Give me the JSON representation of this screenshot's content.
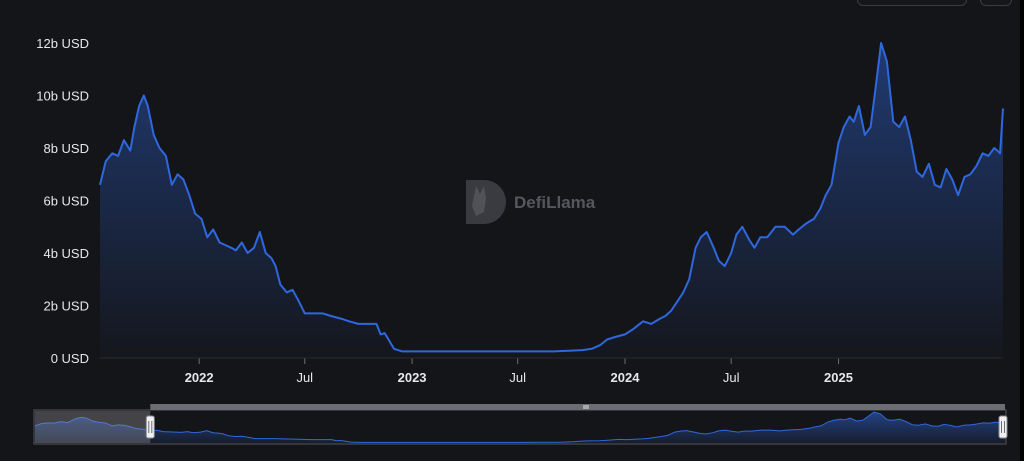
{
  "brand": {
    "watermark_text": "DefiLlama",
    "watermark_icon": "llama-logo-icon",
    "line_color": "#2f68dd",
    "background": "#141519"
  },
  "chart_data": {
    "type": "area",
    "title": "",
    "xlabel": "",
    "ylabel": "",
    "unit": "USD",
    "ylim": [
      0,
      12
    ],
    "xlim": [
      "2021-07-15",
      "2025-10-10"
    ],
    "yticks": [
      {
        "value": 0,
        "label": "0 USD"
      },
      {
        "value": 2,
        "label": "2b USD"
      },
      {
        "value": 4,
        "label": "4b USD"
      },
      {
        "value": 6,
        "label": "6b USD"
      },
      {
        "value": 8,
        "label": "8b USD"
      },
      {
        "value": 10,
        "label": "10b USD"
      },
      {
        "value": 12,
        "label": "12b USD"
      }
    ],
    "xticks": [
      {
        "date": "2022-01-01",
        "label": "2022",
        "bold": true
      },
      {
        "date": "2022-07-01",
        "label": "Jul",
        "bold": false
      },
      {
        "date": "2023-01-01",
        "label": "2023",
        "bold": true
      },
      {
        "date": "2023-07-01",
        "label": "Jul",
        "bold": false
      },
      {
        "date": "2024-01-01",
        "label": "2024",
        "bold": true
      },
      {
        "date": "2024-07-01",
        "label": "Jul",
        "bold": false
      },
      {
        "date": "2025-01-01",
        "label": "2025",
        "bold": true
      }
    ],
    "grid": false,
    "legend": "none",
    "series": [
      {
        "x": [
          "2021-07-15",
          "2021-07-25",
          "2021-08-05",
          "2021-08-15",
          "2021-08-25",
          "2021-09-05",
          "2021-09-12",
          "2021-09-20",
          "2021-09-28",
          "2021-10-05",
          "2021-10-15",
          "2021-10-25",
          "2021-11-05",
          "2021-11-15",
          "2021-11-25",
          "2021-12-05",
          "2021-12-15",
          "2021-12-25",
          "2022-01-05",
          "2022-01-15",
          "2022-01-25",
          "2022-02-05",
          "2022-02-15",
          "2022-02-25",
          "2022-03-05",
          "2022-03-15",
          "2022-03-25",
          "2022-04-05",
          "2022-04-15",
          "2022-04-25",
          "2022-05-05",
          "2022-05-12",
          "2022-05-20",
          "2022-05-31",
          "2022-06-10",
          "2022-06-20",
          "2022-07-01",
          "2022-07-15",
          "2022-08-01",
          "2022-08-15",
          "2022-09-01",
          "2022-09-15",
          "2022-10-01",
          "2022-10-15",
          "2022-11-01",
          "2022-11-08",
          "2022-11-15",
          "2022-12-01",
          "2022-12-15",
          "2023-01-01",
          "2023-02-01",
          "2023-03-01",
          "2023-04-01",
          "2023-05-01",
          "2023-06-01",
          "2023-07-01",
          "2023-08-01",
          "2023-09-01",
          "2023-10-01",
          "2023-10-20",
          "2023-11-05",
          "2023-11-20",
          "2023-12-01",
          "2023-12-15",
          "2024-01-01",
          "2024-01-15",
          "2024-02-01",
          "2024-02-15",
          "2024-03-01",
          "2024-03-10",
          "2024-03-20",
          "2024-04-01",
          "2024-04-10",
          "2024-04-20",
          "2024-05-01",
          "2024-05-10",
          "2024-05-20",
          "2024-06-01",
          "2024-06-10",
          "2024-06-20",
          "2024-07-01",
          "2024-07-10",
          "2024-07-20",
          "2024-08-01",
          "2024-08-10",
          "2024-08-20",
          "2024-09-01",
          "2024-09-15",
          "2024-10-01",
          "2024-10-15",
          "2024-10-25",
          "2024-11-05",
          "2024-11-12",
          "2024-11-20",
          "2024-12-01",
          "2024-12-10",
          "2024-12-20",
          "2025-01-01",
          "2025-01-10",
          "2025-01-20",
          "2025-01-27",
          "2025-02-05",
          "2025-02-15",
          "2025-02-25",
          "2025-03-05",
          "2025-03-15",
          "2025-03-25",
          "2025-04-05",
          "2025-04-15",
          "2025-04-25",
          "2025-05-05",
          "2025-05-15",
          "2025-05-25",
          "2025-06-05",
          "2025-06-15",
          "2025-06-25",
          "2025-07-05",
          "2025-07-15",
          "2025-07-25",
          "2025-08-05",
          "2025-08-15",
          "2025-08-25",
          "2025-09-05",
          "2025-09-15",
          "2025-09-25",
          "2025-10-05",
          "2025-10-10"
        ],
        "values": [
          6.6,
          7.5,
          7.8,
          7.7,
          8.3,
          7.9,
          8.8,
          9.6,
          10.0,
          9.6,
          8.5,
          8.0,
          7.7,
          6.6,
          7.0,
          6.8,
          6.2,
          5.5,
          5.3,
          4.6,
          4.9,
          4.4,
          4.3,
          4.2,
          4.1,
          4.4,
          4.0,
          4.2,
          4.8,
          4.0,
          3.8,
          3.5,
          2.8,
          2.5,
          2.6,
          2.2,
          1.7,
          1.7,
          1.7,
          1.6,
          1.5,
          1.4,
          1.3,
          1.3,
          1.3,
          0.9,
          0.95,
          0.35,
          0.25,
          0.25,
          0.25,
          0.25,
          0.25,
          0.25,
          0.25,
          0.25,
          0.25,
          0.25,
          0.28,
          0.3,
          0.35,
          0.5,
          0.7,
          0.8,
          0.9,
          1.1,
          1.4,
          1.3,
          1.5,
          1.6,
          1.8,
          2.2,
          2.5,
          3.0,
          4.2,
          4.6,
          4.8,
          4.2,
          3.7,
          3.5,
          4.0,
          4.7,
          5.0,
          4.5,
          4.2,
          4.6,
          4.6,
          5.0,
          5.0,
          4.7,
          4.9,
          5.1,
          5.2,
          5.3,
          5.7,
          6.2,
          6.6,
          8.2,
          8.8,
          9.2,
          9.0,
          9.6,
          8.5,
          8.8,
          10.2,
          12.0,
          11.3,
          9.0,
          8.8,
          9.2,
          8.3,
          7.1,
          6.9,
          7.4,
          6.6,
          6.5,
          7.2,
          6.8,
          6.2,
          6.9,
          7.0,
          7.3,
          7.8,
          7.7,
          8.0,
          7.8,
          9.5
        ]
      }
    ],
    "navigator": {
      "range_start": "2022-01-15",
      "range_end": "2025-10-10"
    }
  }
}
